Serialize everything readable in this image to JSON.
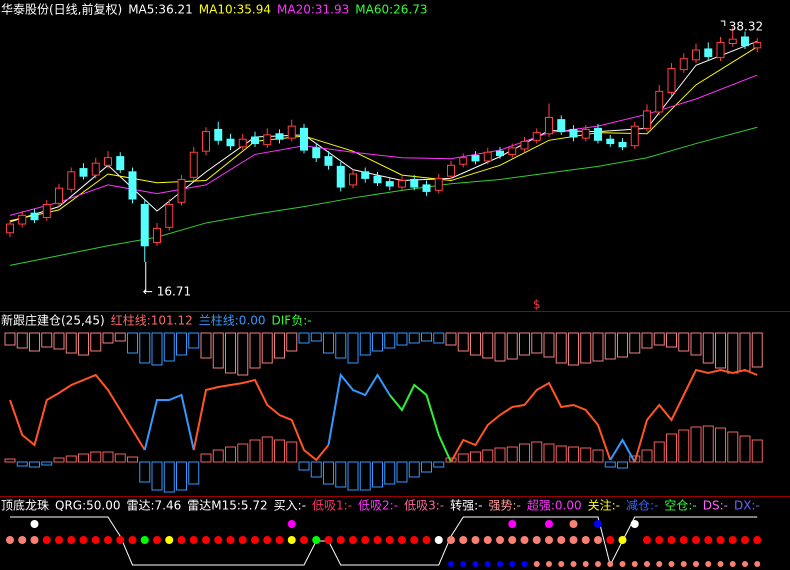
{
  "chart_data": [
    {
      "type": "candlestick",
      "header": [
        {
          "text": "华泰股份(日线,前复权)",
          "color": "#ffffff"
        },
        {
          "text": "MA5:36.21",
          "color": "#ffffff"
        },
        {
          "text": "MA10:35.94",
          "color": "#ffff00"
        },
        {
          "text": "MA20:31.93",
          "color": "#ff33ff"
        },
        {
          "text": "MA60:26.73",
          "color": "#33ff33"
        }
      ],
      "ylim": [
        13.4,
        40.8
      ],
      "up_color": "#ff4040",
      "down_color": "#54ffff",
      "open": [
        19.4,
        20.2,
        21.2,
        20.8,
        22.1,
        23.4,
        25.3,
        24.7,
        25.6,
        26.4,
        25.0,
        22.0,
        18.5,
        19.9,
        22.2,
        24.5,
        26.9,
        28.9,
        28.0,
        27.3,
        28.2,
        27.5,
        28.5,
        28.1,
        29.0,
        27.2,
        26.4,
        25.5,
        23.8,
        25.0,
        24.6,
        24.1,
        23.6,
        24.3,
        23.8,
        23.3,
        24.6,
        25.7,
        26.5,
        26.0,
        26.9,
        26.6,
        27.1,
        27.9,
        28.5,
        29.8,
        28.9,
        28.1,
        29.0,
        28.0,
        27.7,
        27.4,
        29.0,
        30.5,
        32.3,
        34.4,
        35.3,
        36.3,
        35.5,
        36.8,
        37.4,
        36.4
      ],
      "high": [
        20.6,
        21.4,
        21.6,
        22.4,
        23.9,
        25.4,
        25.8,
        26.3,
        26.9,
        26.8,
        25.4,
        22.4,
        20.3,
        22.5,
        24.7,
        27.3,
        29.1,
        29.6,
        28.5,
        28.5,
        28.7,
        29.0,
        28.9,
        29.8,
        29.4,
        27.6,
        26.9,
        25.9,
        25.2,
        25.4,
        25.0,
        24.5,
        24.6,
        24.7,
        24.2,
        24.8,
        26.0,
        26.7,
        26.9,
        27.2,
        27.3,
        27.6,
        28.2,
        29.0,
        31.3,
        30.2,
        29.3,
        29.3,
        29.4,
        28.4,
        28.1,
        29.6,
        31.2,
        33.0,
        35.0,
        35.9,
        36.8,
        36.9,
        37.4,
        38.32,
        37.9,
        37.3
      ],
      "low": [
        19.0,
        19.9,
        20.3,
        20.5,
        21.8,
        23.1,
        24.3,
        24.4,
        25.3,
        24.9,
        22.1,
        16.71,
        18.2,
        19.6,
        21.9,
        24.2,
        26.5,
        27.5,
        27.0,
        27.0,
        27.3,
        27.2,
        27.6,
        27.8,
        26.7,
        25.9,
        25.2,
        23.2,
        23.5,
        24.0,
        23.7,
        23.3,
        23.3,
        23.3,
        22.8,
        23.0,
        24.3,
        25.4,
        25.7,
        25.7,
        26.2,
        26.3,
        26.8,
        27.6,
        28.2,
        28.4,
        27.8,
        27.8,
        27.6,
        27.3,
        27.0,
        27.1,
        28.7,
        30.2,
        32.0,
        34.1,
        35.0,
        35.3,
        35.2,
        36.5,
        36.3,
        36.0
      ],
      "close": [
        20.2,
        21.0,
        20.6,
        22.0,
        23.5,
        25.0,
        24.6,
        25.8,
        26.3,
        25.2,
        22.5,
        18.2,
        19.8,
        22.0,
        24.3,
        26.8,
        28.7,
        27.9,
        27.4,
        28.0,
        27.6,
        28.4,
        28.0,
        29.2,
        27.0,
        26.3,
        25.6,
        23.6,
        24.8,
        24.4,
        24.0,
        23.7,
        24.2,
        23.6,
        23.2,
        24.4,
        25.6,
        26.3,
        26.0,
        26.8,
        26.5,
        27.2,
        27.8,
        28.6,
        30.0,
        28.7,
        28.2,
        28.9,
        27.9,
        27.6,
        27.3,
        29.2,
        30.6,
        32.4,
        34.5,
        35.4,
        36.2,
        35.6,
        36.9,
        37.2,
        36.6,
        36.9
      ],
      "ma": [
        {
          "color": "#ffffff",
          "x": [
            0,
            4,
            8,
            12,
            16,
            20,
            24,
            28,
            32,
            36,
            40,
            44,
            48,
            52,
            56,
            61
          ],
          "values": [
            20.4,
            21.8,
            25.6,
            21.4,
            25.0,
            28.2,
            28.4,
            25.2,
            24.2,
            24.4,
            26.4,
            28.8,
            28.7,
            29.0,
            34.8,
            37.0
          ]
        },
        {
          "color": "#ffff00",
          "x": [
            0,
            4,
            8,
            12,
            16,
            20,
            24,
            28,
            32,
            36,
            40,
            44,
            48,
            52,
            56,
            61
          ],
          "values": [
            20.5,
            21.5,
            24.8,
            24.0,
            24.2,
            27.8,
            28.3,
            26.9,
            24.7,
            24.2,
            25.6,
            27.9,
            28.6,
            28.5,
            33.0,
            36.5
          ]
        },
        {
          "color": "#ff33ff",
          "x": [
            0,
            4,
            8,
            12,
            16,
            20,
            24,
            28,
            32,
            36,
            40,
            44,
            48,
            52,
            56,
            61
          ],
          "values": [
            21.0,
            22.2,
            23.8,
            23.0,
            23.8,
            26.6,
            27.4,
            26.8,
            26.3,
            26.2,
            27.0,
            28.6,
            29.2,
            30.3,
            31.7,
            33.9
          ]
        },
        {
          "color": "#33cc33",
          "x": [
            0,
            4,
            8,
            12,
            16,
            20,
            24,
            28,
            32,
            36,
            40,
            44,
            48,
            52,
            56,
            61
          ],
          "values": [
            16.4,
            17.3,
            18.2,
            19.0,
            20.3,
            21.1,
            21.8,
            22.6,
            23.3,
            23.9,
            24.3,
            24.9,
            25.5,
            26.3,
            27.6,
            29.1
          ]
        }
      ],
      "marker": "$",
      "marker_index": 43
    },
    {
      "type": "indicator",
      "header": [
        {
          "text": "新跟庄建仓(25,45)",
          "color": "#ffffff"
        },
        {
          "text": "红柱线:101.12",
          "color": "#ff6666"
        },
        {
          "text": "兰柱线:0.00",
          "color": "#3399ff"
        },
        {
          "text": "DIF负:-",
          "color": "#33ff33"
        }
      ],
      "ylim": [
        0,
        100
      ],
      "upper_bars": [
        12,
        15,
        18,
        14,
        16,
        20,
        22,
        18,
        10,
        8,
        20,
        30,
        32,
        28,
        22,
        15,
        25,
        35,
        40,
        42,
        35,
        30,
        25,
        18,
        10,
        8,
        20,
        25,
        30,
        22,
        18,
        15,
        12,
        10,
        8,
        10,
        12,
        18,
        22,
        25,
        28,
        26,
        22,
        20,
        24,
        30,
        32,
        30,
        28,
        26,
        24,
        20,
        15,
        12,
        14,
        18,
        22,
        30,
        35,
        40,
        38,
        34
      ],
      "upper_segments": [
        {
          "from": 0,
          "to": 9,
          "color": "#f08080"
        },
        {
          "from": 10,
          "to": 15,
          "color": "#3399ff"
        },
        {
          "from": 16,
          "to": 23,
          "color": "#f08080"
        },
        {
          "from": 24,
          "to": 35,
          "color": "#3399ff"
        },
        {
          "from": 36,
          "to": 61,
          "color": "#f08080"
        }
      ],
      "line": [
        65,
        30,
        20,
        65,
        72,
        80,
        85,
        90,
        75,
        55,
        35,
        15,
        65,
        65,
        70,
        15,
        75,
        78,
        80,
        82,
        85,
        60,
        50,
        45,
        15,
        5,
        20,
        90,
        75,
        70,
        90,
        70,
        55,
        80,
        70,
        30,
        3,
        25,
        20,
        40,
        50,
        58,
        60,
        75,
        82,
        58,
        60,
        55,
        40,
        5,
        25,
        3,
        45,
        60,
        45,
        70,
        95,
        92,
        95,
        92,
        95,
        90
      ],
      "line_segments": [
        {
          "from": 0,
          "to": 11,
          "color": "#ff5522"
        },
        {
          "from": 11,
          "to": 15,
          "color": "#3399ff"
        },
        {
          "from": 15,
          "to": 26,
          "color": "#ff5522"
        },
        {
          "from": 26,
          "to": 31,
          "color": "#3399ff"
        },
        {
          "from": 31,
          "to": 36,
          "color": "#33ee33"
        },
        {
          "from": 36,
          "to": 49,
          "color": "#ff5522"
        },
        {
          "from": 49,
          "to": 51,
          "color": "#3399ff"
        },
        {
          "from": 51,
          "to": 61,
          "color": "#ff5522"
        }
      ],
      "lower_bars": [
        3,
        -4,
        -5,
        -3,
        4,
        6,
        8,
        10,
        10,
        8,
        5,
        -20,
        -28,
        -30,
        -28,
        -22,
        8,
        12,
        15,
        18,
        22,
        25,
        22,
        20,
        -8,
        -15,
        -22,
        -25,
        -28,
        -28,
        -25,
        -22,
        -20,
        -15,
        -10,
        -5,
        4,
        8,
        10,
        12,
        14,
        15,
        18,
        20,
        18,
        16,
        15,
        14,
        12,
        -5,
        -6,
        6,
        12,
        20,
        28,
        32,
        35,
        36,
        34,
        30,
        26,
        22
      ],
      "up_color": "#f06060",
      "down_color": "#3399ff"
    },
    {
      "type": "signals",
      "header": [
        {
          "text": "顶底龙珠",
          "color": "#ffffff"
        },
        {
          "text": "QRG:50.00",
          "color": "#ffffff"
        },
        {
          "text": "雷达:7.46",
          "color": "#ffffff"
        },
        {
          "text": "雷达M15:5.72",
          "color": "#ffffff"
        },
        {
          "text": "买入:-",
          "color": "#ffffff"
        },
        {
          "text": "低吸1:-",
          "color": "#ff3366"
        },
        {
          "text": "低吸2:-",
          "color": "#ff33ff"
        },
        {
          "text": "低吸3:-",
          "color": "#ff6699"
        },
        {
          "text": "转强:-",
          "color": "#ffffff"
        },
        {
          "text": "强势:-",
          "color": "#ff9999"
        },
        {
          "text": "超强:0.00",
          "color": "#ff33ff"
        },
        {
          "text": "关注:-",
          "color": "#ffff00"
        },
        {
          "text": "减仓:-",
          "color": "#3366ff"
        },
        {
          "text": "空仓:-",
          "color": "#33ff33"
        },
        {
          "text": "DS:-",
          "color": "#ff66ff"
        },
        {
          "text": "DX:-",
          "color": "#6666ff"
        }
      ],
      "ylim": [
        0,
        100
      ],
      "line": [
        100,
        100,
        100,
        100,
        100,
        100,
        100,
        100,
        100,
        60,
        0,
        0,
        0,
        0,
        0,
        0,
        0,
        0,
        0,
        0,
        0,
        0,
        0,
        0,
        0,
        50,
        50,
        0,
        0,
        0,
        0,
        0,
        0,
        0,
        0,
        0,
        60,
        100,
        100,
        100,
        100,
        100,
        100,
        100,
        100,
        100,
        100,
        100,
        100,
        0,
        50,
        100,
        100,
        100,
        100,
        100,
        100,
        100,
        100,
        100,
        100,
        100
      ],
      "rows": [
        [
          null,
          null,
          "white",
          null,
          null,
          null,
          null,
          null,
          null,
          null,
          null,
          null,
          null,
          null,
          null,
          null,
          null,
          null,
          null,
          null,
          null,
          null,
          null,
          "magenta",
          null,
          null,
          null,
          null,
          null,
          null,
          null,
          null,
          null,
          null,
          null,
          null,
          null,
          null,
          null,
          null,
          null,
          "magenta",
          null,
          null,
          "magenta",
          null,
          "salmon",
          null,
          "blue",
          null,
          null,
          "white",
          null,
          null,
          null,
          null,
          null,
          null,
          null,
          null,
          null,
          null
        ],
        [
          "salmon",
          "salmon",
          "salmon",
          "red",
          "red",
          "red",
          "red",
          "red",
          "red",
          "red",
          "red",
          "lime",
          "red",
          "yellow",
          "red",
          "red",
          "red",
          "red",
          "red",
          "red",
          "red",
          "red",
          "red",
          "yellow",
          "red",
          "lime",
          "red",
          "red",
          "red",
          "red",
          "red",
          "red",
          "red",
          "red",
          "red",
          "white",
          "salmon",
          "salmon",
          "salmon",
          "salmon",
          "salmon",
          "salmon",
          "salmon",
          "salmon",
          "salmon",
          "salmon",
          "salmon",
          "salmon",
          "salmon",
          "red",
          "yellow",
          null,
          "red",
          "red",
          "red",
          "red",
          "red",
          "red",
          "red",
          "red",
          "red",
          "red"
        ],
        [
          null,
          null,
          null,
          null,
          null,
          null,
          null,
          null,
          null,
          null,
          null,
          null,
          null,
          null,
          null,
          null,
          null,
          null,
          null,
          null,
          null,
          null,
          null,
          null,
          null,
          null,
          null,
          null,
          null,
          null,
          null,
          null,
          null,
          null,
          null,
          null,
          "blue",
          "blue",
          "blue",
          "blue",
          "blue",
          "blue",
          "blue",
          "salmon",
          "salmon",
          "salmon",
          "salmon",
          "salmon",
          "salmon",
          "salmon",
          "salmon",
          "salmon",
          "salmon",
          "salmon",
          "salmon",
          "salmon",
          "salmon",
          "salmon",
          "salmon",
          "salmon",
          "salmon",
          "salmon"
        ]
      ]
    }
  ]
}
